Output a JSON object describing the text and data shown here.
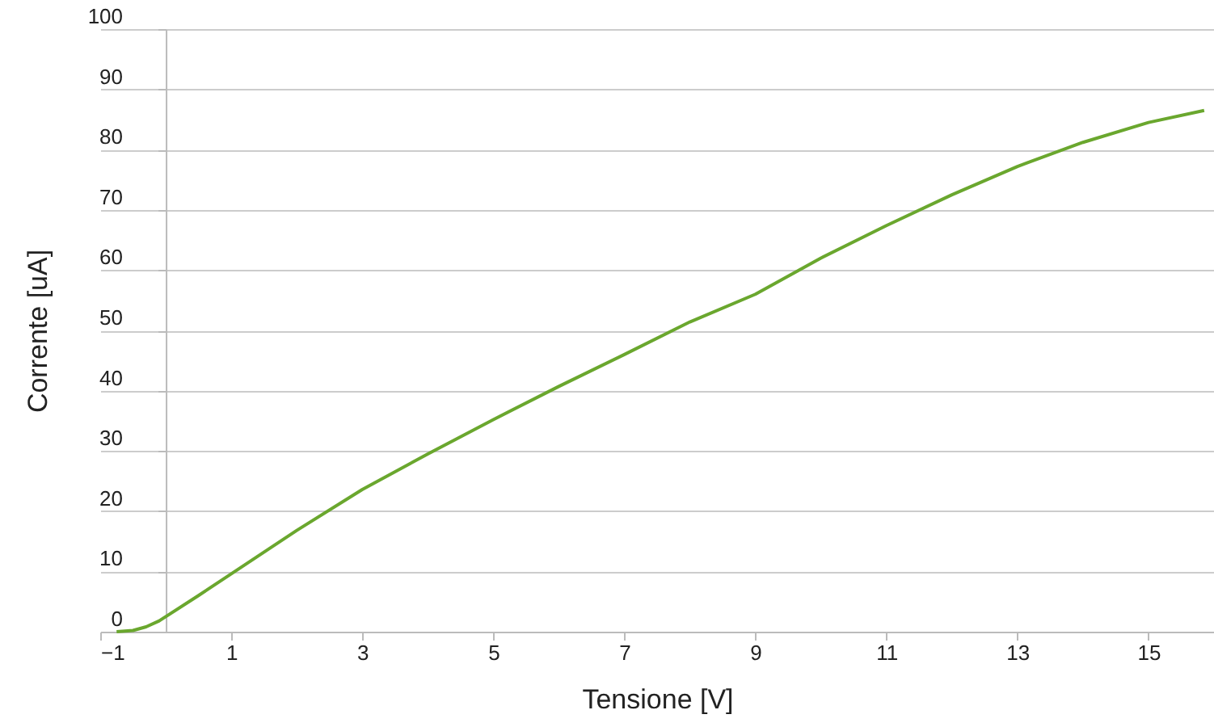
{
  "chart_data": {
    "type": "line",
    "xlabel": "Tensione [V]",
    "ylabel": "Corrente [uA]",
    "x": [
      -0.75,
      -0.5,
      -0.3,
      -0.1,
      0,
      0.5,
      1,
      2,
      3,
      4,
      5,
      6,
      7,
      8,
      9,
      10,
      11,
      12,
      13,
      14,
      15,
      15.85
    ],
    "series": [
      {
        "color": "#6aa72e",
        "values": [
          0,
          0.2,
          0.8,
          1.8,
          2.5,
          6,
          9.6,
          16.8,
          23.6,
          29.5,
          35.2,
          40.7,
          46,
          51.4,
          56,
          62,
          67.4,
          72.5,
          77.2,
          81.2,
          84.5,
          86.5
        ]
      }
    ],
    "xlim": [
      -1,
      16
    ],
    "xticks": [
      -1,
      1,
      3,
      5,
      7,
      9,
      11,
      13,
      15
    ],
    "ylim": [
      0,
      100
    ],
    "yticks": [
      0,
      10,
      20,
      30,
      40,
      50,
      60,
      70,
      80,
      90,
      100
    ],
    "grid": "y",
    "marker": "none",
    "line_style": "solid"
  }
}
